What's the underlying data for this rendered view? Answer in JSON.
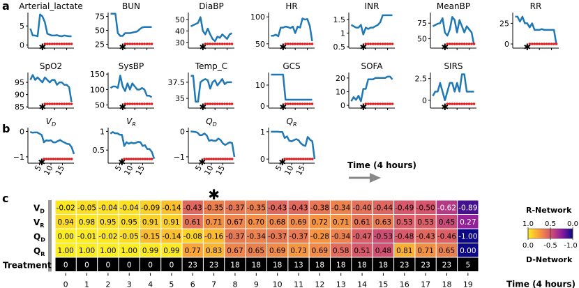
{
  "panel_labels": [
    "a",
    "b",
    "c"
  ],
  "arrow_label": "Time (4 hours)",
  "chart_data": [
    {
      "type": "line",
      "panel": "a",
      "subplots": [
        {
          "title": "Arterial_lactate",
          "yticks": [
            0,
            5
          ],
          "ylim": [
            -0.8,
            8.5
          ],
          "y": [
            4.3,
            2.5,
            2.5,
            2.3,
            8.0,
            7.5,
            6.0,
            3.0,
            2.7,
            2.5,
            2.5,
            2.6,
            2.4,
            2.3,
            2.5,
            2.4,
            2.3,
            2.3
          ]
        },
        {
          "title": "BUN",
          "yticks": [
            25,
            50,
            75
          ],
          "ylim": [
            18,
            82
          ],
          "y": [
            80,
            80,
            80,
            45,
            40,
            40,
            45,
            45,
            45,
            46,
            47,
            48,
            52,
            55,
            56,
            56,
            56,
            56
          ]
        },
        {
          "title": "DiaBP",
          "yticks": [
            30,
            40,
            50
          ],
          "ylim": [
            25,
            56
          ],
          "y": [
            44,
            45,
            46,
            47,
            52,
            40,
            37,
            42,
            37,
            33,
            31,
            35,
            34,
            37,
            35,
            33,
            37,
            38
          ]
        },
        {
          "title": "HR",
          "yticks": [
            50,
            100
          ],
          "ylim": [
            42,
            108
          ],
          "y": [
            65,
            65,
            67,
            64,
            80,
            80,
            82,
            81,
            79,
            82,
            70,
            82,
            80,
            97,
            95,
            96,
            83,
            55
          ]
        },
        {
          "title": "INR",
          "yticks": [
            0.5,
            1.0,
            1.5
          ],
          "ylim": [
            0.45,
            1.75
          ],
          "y": [
            1.3,
            1.25,
            1.2,
            1.2,
            1.3,
            0.95,
            1.2,
            1.15,
            1.2,
            1.2,
            1.25,
            1.3,
            1.4,
            1.65,
            1.65,
            1.65,
            1.65,
            1.65
          ]
        },
        {
          "title": "MeanBP",
          "yticks": [
            50,
            75
          ],
          "ylim": [
            35,
            92
          ],
          "y": [
            70,
            72,
            74,
            75,
            83,
            60,
            55,
            65,
            85,
            80,
            60,
            80,
            70,
            60,
            70,
            65,
            60,
            40
          ]
        },
        {
          "title": "RR",
          "yticks": [
            0,
            25
          ],
          "ylim": [
            -5,
            38
          ],
          "y": [
            33,
            33,
            27,
            33,
            25,
            25,
            20,
            25,
            17,
            17,
            17,
            18,
            17,
            17,
            17,
            17,
            17,
            0
          ]
        },
        {
          "title": "SpO2",
          "yticks": [
            85,
            90,
            95
          ],
          "ylim": [
            84.5,
            99
          ],
          "y": [
            96,
            98,
            96,
            97,
            96,
            95,
            97,
            96,
            95,
            96,
            96,
            94,
            95,
            95,
            94,
            94,
            93,
            87
          ]
        },
        {
          "title": "SysBP",
          "yticks": [
            50,
            100,
            150
          ],
          "ylim": [
            40,
            155
          ],
          "y": [
            105,
            110,
            110,
            105,
            145,
            110,
            95,
            120,
            100,
            120,
            110,
            100,
            100,
            105,
            100,
            80,
            80,
            75
          ]
        },
        {
          "title": "Temp_C",
          "yticks": [
            35.0,
            37.5
          ],
          "ylim": [
            33.5,
            39.0
          ],
          "y": [
            38.5,
            38.5,
            34.5,
            34.5,
            37.5,
            37.8,
            38.0,
            37.8,
            36.5,
            37.5,
            37.8,
            37.0,
            37.5,
            38.0,
            37.2,
            37.5,
            37.5,
            37.5
          ]
        },
        {
          "title": "GCS",
          "yticks": [
            0,
            10
          ],
          "ylim": [
            -1,
            16
          ],
          "y": [
            15,
            15,
            15,
            15,
            15,
            15,
            3,
            3,
            3,
            3,
            3,
            3,
            3,
            3,
            3,
            3,
            3,
            3
          ]
        },
        {
          "title": "SOFA",
          "yticks": [
            0,
            10,
            20
          ],
          "ylim": [
            -2,
            24
          ],
          "y": [
            3,
            6,
            4,
            7,
            3,
            12,
            12,
            19,
            19,
            19,
            20,
            20,
            20,
            20,
            20,
            21,
            21,
            19
          ]
        },
        {
          "title": "SIRS",
          "yticks": [
            0.0,
            2.5
          ],
          "ylim": [
            -0.9,
            3.2
          ],
          "y": [
            0.5,
            1.0,
            1.0,
            2.0,
            1.0,
            0.0,
            1.0,
            2.0,
            2.0,
            1.0,
            2.0,
            1.0,
            3.0,
            3.0,
            1.0,
            1.0,
            1.0,
            1.0
          ]
        }
      ]
    },
    {
      "type": "line",
      "panel": "b",
      "xticks": [
        5,
        10,
        15
      ],
      "subplots": [
        {
          "title": "V_D",
          "yticks": [
            -1,
            0
          ],
          "ylim": [
            -1.25,
            0.15
          ],
          "y": [
            -0.02,
            -0.05,
            -0.04,
            -0.04,
            -0.09,
            -0.14,
            -0.43,
            -0.35,
            -0.37,
            -0.35,
            -0.43,
            -0.43,
            -0.38,
            -0.34,
            -0.4,
            -0.44,
            -0.49,
            -0.5,
            -0.62,
            -0.89
          ]
        },
        {
          "title": "V_R",
          "yticks": [
            0.5,
            1.0
          ],
          "ylim": [
            0.15,
            1.1
          ],
          "y": [
            0.94,
            0.98,
            0.95,
            0.95,
            0.91,
            0.91,
            0.61,
            0.71,
            0.67,
            0.7,
            0.68,
            0.69,
            0.72,
            0.71,
            0.61,
            0.63,
            0.53,
            0.53,
            0.45,
            0.27
          ]
        },
        {
          "title": "Q_D",
          "yticks": [
            -1,
            0
          ],
          "ylim": [
            -1.25,
            0.15
          ],
          "y": [
            0.0,
            -0.01,
            -0.02,
            -0.05,
            -0.15,
            -0.14,
            -0.08,
            -0.16,
            -0.37,
            -0.34,
            -0.37,
            -0.37,
            -0.28,
            -0.34,
            -0.47,
            -0.53,
            -0.48,
            -0.43,
            -0.46,
            -1.0
          ]
        },
        {
          "title": "Q_R",
          "yticks": [
            0,
            1
          ],
          "ylim": [
            -0.15,
            1.15
          ],
          "y": [
            1.0,
            1.0,
            1.0,
            1.0,
            0.99,
            0.99,
            0.77,
            0.83,
            0.67,
            0.65,
            0.69,
            0.73,
            0.69,
            0.58,
            0.51,
            0.48,
            0.81,
            0.71,
            0.65,
            0.0
          ]
        }
      ]
    },
    {
      "type": "heatmap",
      "panel": "c",
      "rows": [
        "V_D",
        "V_R",
        "Q_D",
        "Q_R"
      ],
      "columns": [
        0,
        1,
        2,
        3,
        4,
        5,
        6,
        7,
        8,
        9,
        10,
        11,
        12,
        13,
        14,
        15,
        16,
        17,
        18,
        19
      ],
      "xlabel": "Time (4 hours)",
      "star_column": 7,
      "values": {
        "V_D": [
          "-0.02",
          "-0.05",
          "-0.04",
          "-0.04",
          "-0.09",
          "-0.14",
          "-0.43",
          "-0.35",
          "-0.37",
          "-0.35",
          "-0.43",
          "-0.43",
          "-0.38",
          "-0.34",
          "-0.40",
          "-0.44",
          "-0.49",
          "-0.50",
          "-0.62",
          "-0.89"
        ],
        "V_R": [
          "0.94",
          "0.98",
          "0.95",
          "0.95",
          "0.91",
          "0.91",
          "0.61",
          "0.71",
          "0.67",
          "0.70",
          "0.68",
          "0.69",
          "0.72",
          "0.71",
          "0.61",
          "0.63",
          "0.53",
          "0.53",
          "0.45",
          "0.27"
        ],
        "Q_D": [
          "0.00",
          "-0.01",
          "-0.02",
          "-0.05",
          "-0.15",
          "-0.14",
          "-0.08",
          "-0.16",
          "-0.37",
          "-0.34",
          "-0.37",
          "-0.37",
          "-0.28",
          "-0.34",
          "-0.47",
          "-0.53",
          "-0.48",
          "-0.43",
          "-0.46",
          "-1.00"
        ],
        "Q_R": [
          "1.00",
          "1.00",
          "1.00",
          "1.00",
          "0.99",
          "0.99",
          "0.77",
          "0.83",
          "0.67",
          "0.65",
          "0.69",
          "0.73",
          "0.69",
          "0.58",
          "0.51",
          "0.48",
          "0.81",
          "0.71",
          "0.65",
          "0.00"
        ]
      },
      "treatment_label": "Treatment",
      "treatment": [
        0,
        0,
        0,
        0,
        0,
        0,
        23,
        23,
        18,
        18,
        18,
        13,
        18,
        18,
        18,
        18,
        23,
        23,
        23,
        5
      ],
      "colorbar": {
        "top_label": "R-Network",
        "bottom_label": "D-Network",
        "top_ticks": [
          "1.0",
          "0.5",
          "0.0"
        ],
        "bottom_ticks": [
          "0.0",
          "-0.5",
          "-1.0"
        ]
      }
    }
  ]
}
